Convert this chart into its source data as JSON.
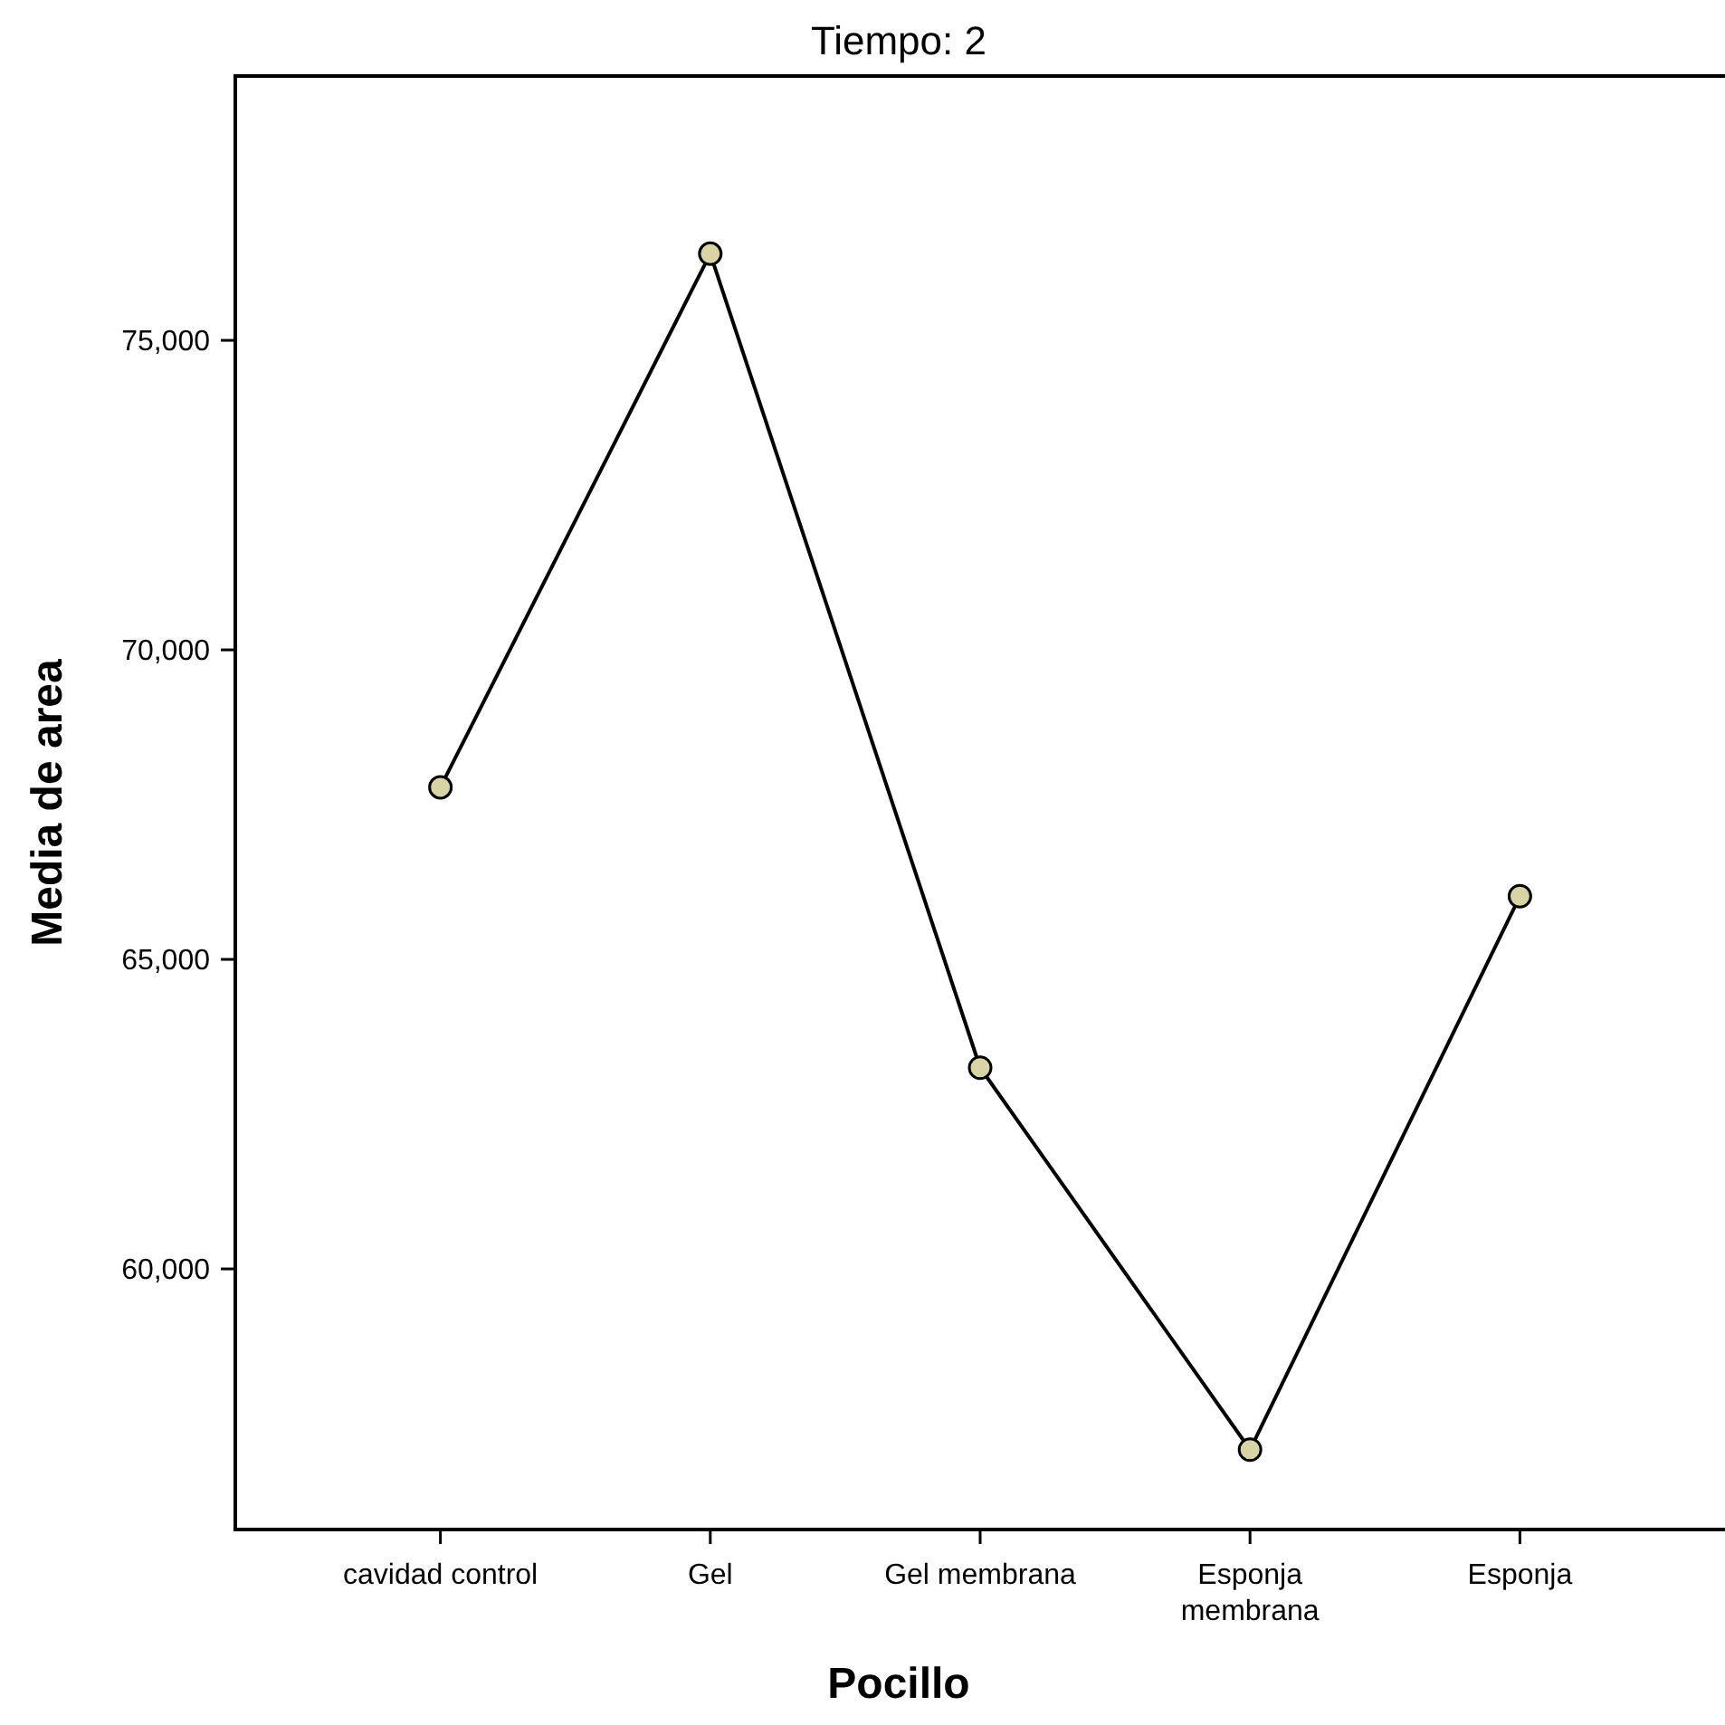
{
  "chart_data": {
    "type": "line",
    "title": "Tiempo: 2",
    "xlabel": "Pocillo",
    "ylabel": "Media de area",
    "categories": [
      "cavidad control",
      "Gel",
      "Gel membrana",
      "Esponja membrana",
      "Esponja"
    ],
    "series": [
      {
        "color": "#d8d4a6",
        "values": [
          67780,
          76400,
          63250,
          57080,
          66020
        ]
      }
    ],
    "ylim": [
      55790,
      79270
    ],
    "yticks": [
      {
        "value": 60000,
        "label": "60,000"
      },
      {
        "value": 65000,
        "label": "65,000"
      },
      {
        "value": 70000,
        "label": "70,000"
      },
      {
        "value": 75000,
        "label": "75,000"
      }
    ],
    "marker": "circle",
    "line_style": "solid"
  }
}
